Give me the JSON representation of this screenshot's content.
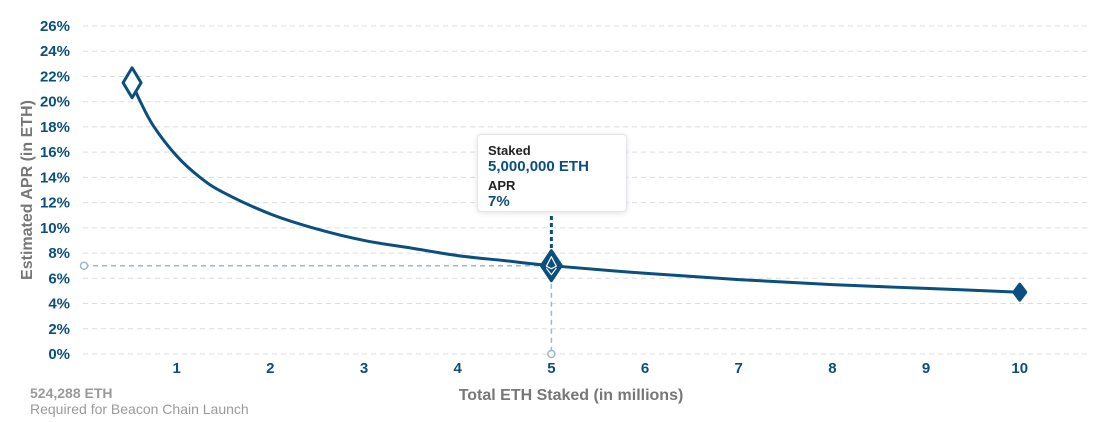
{
  "chart_data": {
    "type": "line",
    "xlabel": "Total ETH Staked  (in millions)",
    "ylabel": "Estimated APR (in ETH)",
    "xlim": [
      0,
      10.75
    ],
    "ylim": [
      0,
      26
    ],
    "x_ticks": [
      "1",
      "2",
      "3",
      "4",
      "5",
      "6",
      "7",
      "8",
      "9",
      "10"
    ],
    "y_ticks": [
      "0%",
      "2%",
      "4%",
      "6%",
      "8%",
      "10%",
      "12%",
      "14%",
      "16%",
      "18%",
      "20%",
      "22%",
      "24%",
      "26%"
    ],
    "grid": "horizontal-dashed",
    "series": [
      {
        "x": [
          0.524,
          0.6,
          0.75,
          1,
          1.25,
          1.5,
          2,
          2.5,
          3,
          3.5,
          4,
          4.5,
          5,
          6,
          7,
          8,
          9,
          10
        ],
        "y": [
          21.5,
          20.2,
          18.1,
          15.7,
          14.0,
          12.8,
          11.1,
          9.9,
          9.0,
          8.4,
          7.8,
          7.4,
          7.0,
          6.4,
          5.9,
          5.5,
          5.2,
          4.9
        ]
      }
    ],
    "highlight": {
      "x": 5,
      "y": 7
    },
    "tooltip": {
      "staked_label": "Staked",
      "staked_value": "5,000,000 ETH",
      "apr_label": "APR",
      "apr_value": "7%"
    },
    "annotation": {
      "value": "524,288 ETH",
      "caption": "Required for Beacon Chain Launch"
    },
    "colors": {
      "line": "#0b4f7e",
      "guide": "#9cb9cf",
      "grid": "#dcdcdc"
    }
  }
}
